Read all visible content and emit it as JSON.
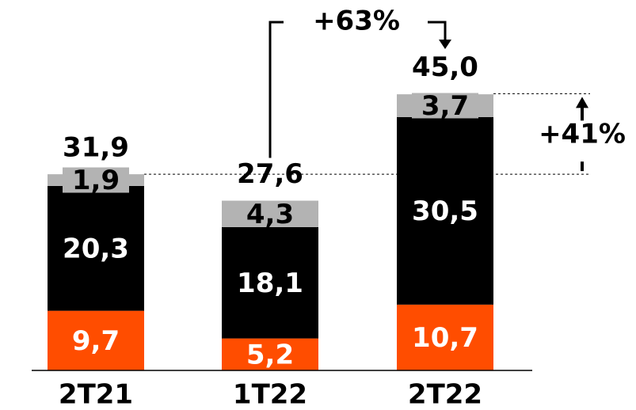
{
  "chart_data": {
    "type": "stacked_bar",
    "categories": [
      "2T21",
      "1T22",
      "2T22"
    ],
    "series": [
      {
        "name": null,
        "color": "#ff4d00",
        "values": [
          9.7,
          5.2,
          10.7
        ],
        "value_labels": [
          "9,7",
          "5,2",
          "10,7"
        ],
        "label_color": "#ffffff"
      },
      {
        "name": null,
        "color": "#000000",
        "values": [
          20.3,
          18.1,
          30.5
        ],
        "value_labels": [
          "20,3",
          "18,1",
          "30,5"
        ],
        "label_color": "#ffffff"
      },
      {
        "name": null,
        "color": "#b3b3b3",
        "values": [
          1.9,
          4.3,
          3.7
        ],
        "value_labels": [
          "1,9",
          "4,3",
          "3,7"
        ],
        "label_color": "#000000"
      }
    ],
    "totals": [
      31.9,
      27.6,
      45.0
    ],
    "total_labels": [
      "31,9",
      "27,6",
      "45,0"
    ],
    "annotations": [
      "+63%",
      "+41%"
    ]
  }
}
